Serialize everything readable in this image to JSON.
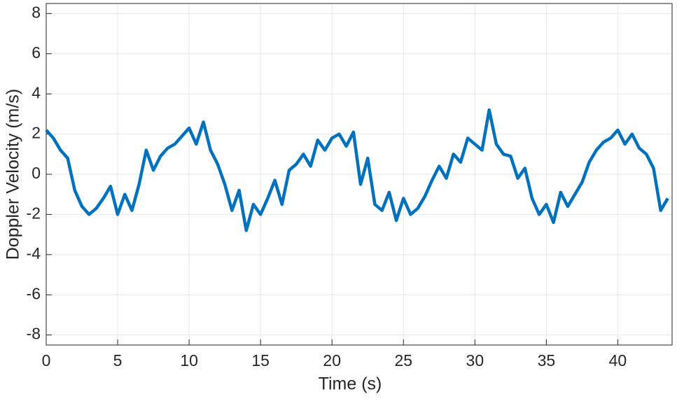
{
  "chart_data": {
    "type": "line",
    "xlabel": "Time (s)",
    "ylabel": "Doppler Velocity (m/s)",
    "x": [
      0,
      0.5,
      1,
      1.5,
      2,
      2.5,
      3,
      3.5,
      4,
      4.5,
      5,
      5.5,
      6,
      6.5,
      7,
      7.5,
      8,
      8.5,
      9,
      9.5,
      10,
      10.5,
      11,
      11.5,
      12,
      12.5,
      13,
      13.5,
      14,
      14.5,
      15,
      15.5,
      16,
      16.5,
      17,
      17.5,
      18,
      18.5,
      19,
      19.5,
      20,
      20.5,
      21,
      21.5,
      22,
      22.5,
      23,
      23.5,
      24,
      24.5,
      25,
      25.5,
      26,
      26.5,
      27,
      27.5,
      28,
      28.5,
      29,
      29.5,
      30,
      30.5,
      31,
      31.5,
      32,
      32.5,
      33,
      33.5,
      34,
      34.5,
      35,
      35.5,
      36,
      36.5,
      37,
      37.5,
      38,
      38.5,
      39,
      39.5,
      40,
      40.5,
      41,
      41.5,
      42,
      42.5,
      43,
      43.5
    ],
    "series": [
      {
        "name": "Doppler Velocity",
        "color": "#0072bd",
        "values": [
          2.2,
          1.8,
          1.2,
          0.8,
          -0.8,
          -1.6,
          -2.0,
          -1.7,
          -1.2,
          -0.6,
          -2.0,
          -1.0,
          -1.8,
          -0.5,
          1.2,
          0.2,
          0.9,
          1.3,
          1.5,
          1.9,
          2.3,
          1.5,
          2.6,
          1.2,
          0.5,
          -0.5,
          -1.8,
          -0.8,
          -2.8,
          -1.5,
          -2.0,
          -1.2,
          -0.3,
          -1.5,
          0.2,
          0.5,
          1.0,
          0.4,
          1.7,
          1.2,
          1.8,
          2.0,
          1.4,
          2.1,
          -0.5,
          0.8,
          -1.5,
          -1.8,
          -0.9,
          -2.3,
          -1.2,
          -2.0,
          -1.7,
          -1.1,
          -0.3,
          0.4,
          -0.2,
          1.0,
          0.6,
          1.8,
          1.5,
          1.2,
          3.2,
          1.5,
          1.0,
          0.9,
          -0.2,
          0.3,
          -1.2,
          -2.0,
          -1.5,
          -2.4,
          -0.9,
          -1.6,
          -1.0,
          -0.4,
          0.6,
          1.2,
          1.6,
          1.8,
          2.2,
          1.5,
          2.0,
          1.3,
          1.0,
          0.3,
          -1.8,
          -1.2
        ]
      }
    ],
    "xlim": [
      0,
      43.8
    ],
    "xticks": [
      0,
      5,
      10,
      15,
      20,
      25,
      30,
      35,
      40
    ],
    "ylim": [
      -8.5,
      8.5
    ],
    "yticks": [
      -8,
      -6,
      -4,
      -2,
      0,
      2,
      4,
      6,
      8
    ],
    "grid": true
  }
}
